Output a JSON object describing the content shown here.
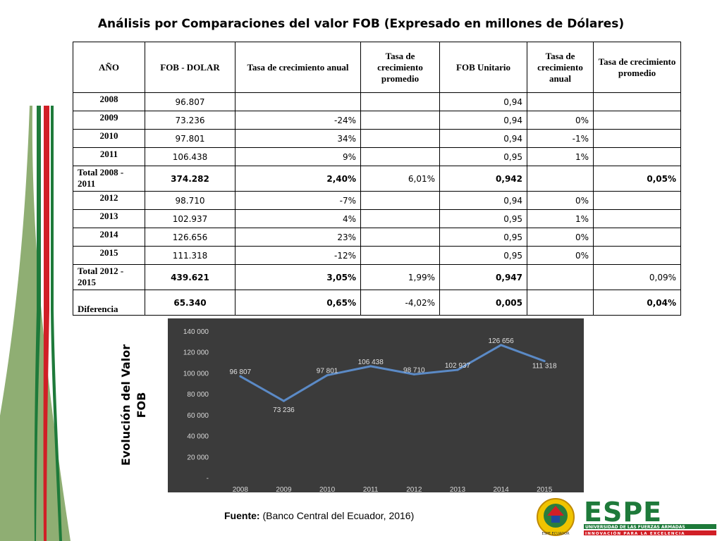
{
  "title": "Análisis por Comparaciones del valor FOB (Expresado en millones de Dólares)",
  "table": {
    "headers": [
      "AÑO",
      "FOB - DOLAR",
      "Tasa de crecimiento anual",
      "Tasa de crecimiento promedio",
      "FOB Unitario",
      "Tasa de crecimiento anual",
      "Tasa de crecimiento promedio"
    ],
    "rows": [
      {
        "year": "2008",
        "fob": "96.807",
        "tca": "",
        "tcp": "",
        "unit": "0,94",
        "tca2": "",
        "tcp2": "",
        "bold": false
      },
      {
        "year": "2009",
        "fob": "73.236",
        "tca": "-24%",
        "tcp": "",
        "unit": "0,94",
        "tca2": "0%",
        "tcp2": "",
        "bold": false
      },
      {
        "year": "2010",
        "fob": "97.801",
        "tca": "34%",
        "tcp": "",
        "unit": "0,94",
        "tca2": "-1%",
        "tcp2": "",
        "bold": false
      },
      {
        "year": "2011",
        "fob": "106.438",
        "tca": "9%",
        "tcp": "",
        "unit": "0,95",
        "tca2": "1%",
        "tcp2": "",
        "bold": false
      },
      {
        "year": "Total 2008 - 2011",
        "fob": "374.282",
        "tca": "2,40%",
        "tcp": "6,01%",
        "unit": "0,942",
        "tca2": "",
        "tcp2": "0,05%",
        "bold": true
      },
      {
        "year": "2012",
        "fob": "98.710",
        "tca": "-7%",
        "tcp": "",
        "unit": "0,94",
        "tca2": "0%",
        "tcp2": "",
        "bold": false
      },
      {
        "year": "2013",
        "fob": "102.937",
        "tca": "4%",
        "tcp": "",
        "unit": "0,95",
        "tca2": "1%",
        "tcp2": "",
        "bold": false
      },
      {
        "year": "2014",
        "fob": "126.656",
        "tca": "23%",
        "tcp": "",
        "unit": "0,95",
        "tca2": "0%",
        "tcp2": "",
        "bold": false
      },
      {
        "year": "2015",
        "fob": "111.318",
        "tca": "-12%",
        "tcp": "",
        "unit": "0,95",
        "tca2": "0%",
        "tcp2": "",
        "bold": false
      },
      {
        "year": "Total 2012 - 2015",
        "fob": "439.621",
        "tca": "3,05%",
        "tcp": "1,99%",
        "unit": "0,947",
        "tca2": "",
        "tcp2": "0,09%",
        "bold": true
      },
      {
        "year": "Diferencia",
        "fob": "65.340",
        "tca": "0,65%",
        "tcp": "-4,02%",
        "unit": "0,005",
        "tca2": "",
        "tcp2": "0,04%",
        "bold": true
      }
    ]
  },
  "chart_data": {
    "type": "line",
    "categories": [
      "2008",
      "2009",
      "2010",
      "2011",
      "2012",
      "2013",
      "2014",
      "2015"
    ],
    "values": [
      96807,
      73236,
      97801,
      106438,
      98710,
      102937,
      126656,
      111318
    ],
    "data_labels": [
      "96 807",
      "73 236",
      "97 801",
      "106 438",
      "98 710",
      "102 937",
      "126 656",
      "111 318"
    ],
    "y_ticks": [
      "-",
      "20 000",
      "40 000",
      "60 000",
      "80 000",
      "100 000",
      "120 000",
      "140 000"
    ],
    "ylim": [
      0,
      140000
    ],
    "ylabel": "Evolución del Valor FOB",
    "grid": false,
    "line_color": "#5b8ac6",
    "background": "#3b3b3b"
  },
  "source": {
    "label": "Fuente:",
    "text": "(Banco Central del Ecuador, 2016)"
  },
  "logo": {
    "wordmark": "ESPE",
    "tagline": "UNIVERSIDAD DE LAS FUERZAS ARMADAS",
    "motto": "INNOVACIÓN PARA LA EXCELENCIA",
    "seal_text": "ESPE ECUADOR"
  },
  "colors": {
    "green": "#1e7a3a",
    "red": "#d11f26",
    "sage": "#8fae73"
  }
}
